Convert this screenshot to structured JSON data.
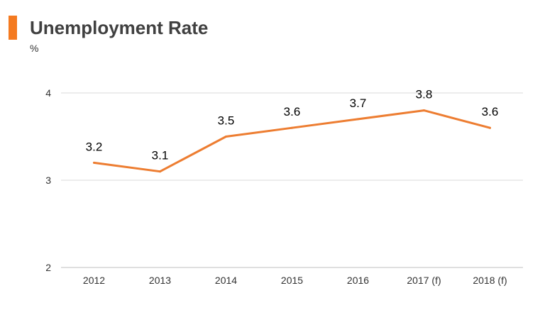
{
  "header": {
    "title": "Unemployment Rate",
    "unit": "%"
  },
  "colors": {
    "accent": "#f47a20",
    "line": "#ed7d31",
    "grid": "#d9d9d9",
    "axis": "#bfbfbf"
  },
  "chart_data": {
    "type": "line",
    "title": "Unemployment Rate",
    "ylabel": "%",
    "xlabel": "",
    "categories": [
      "2012",
      "2013",
      "2014",
      "2015",
      "2016",
      "2017 (f)",
      "2018 (f)"
    ],
    "series": [
      {
        "values": [
          3.2,
          3.1,
          3.5,
          3.6,
          3.7,
          3.8,
          3.6
        ]
      }
    ],
    "ylim": [
      2,
      4
    ],
    "yticks": [
      2,
      3,
      4
    ],
    "grid": true,
    "legend": "none",
    "data_labels": [
      "3.2",
      "3.1",
      "3.5",
      "3.6",
      "3.7",
      "3.8",
      "3.6"
    ]
  }
}
